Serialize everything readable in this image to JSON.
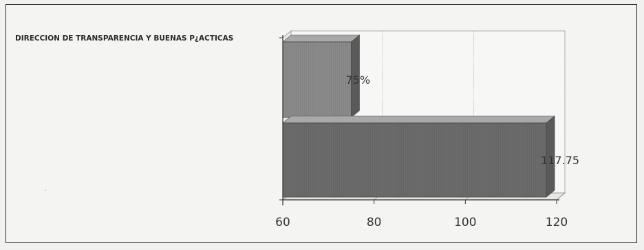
{
  "chart_data": {
    "type": "bar",
    "orientation": "horizontal",
    "style": "3d",
    "categories": [
      "DIRECCION DE TRANSPARENCIA Y BUENAS P¿ACTICAS"
    ],
    "series": [
      {
        "values": [
          75
        ],
        "data_label": "75%",
        "color": "#8a8a8a"
      },
      {
        "values": [
          117.75
        ],
        "data_label": "117.75",
        "color": "#6b6b6b"
      }
    ],
    "title": "",
    "xlabel": "",
    "ylabel": "",
    "xlim": [
      60,
      120
    ],
    "x_ticks": [
      "60",
      "80",
      "100",
      "120"
    ],
    "grid": "vertical",
    "legend": "none"
  }
}
